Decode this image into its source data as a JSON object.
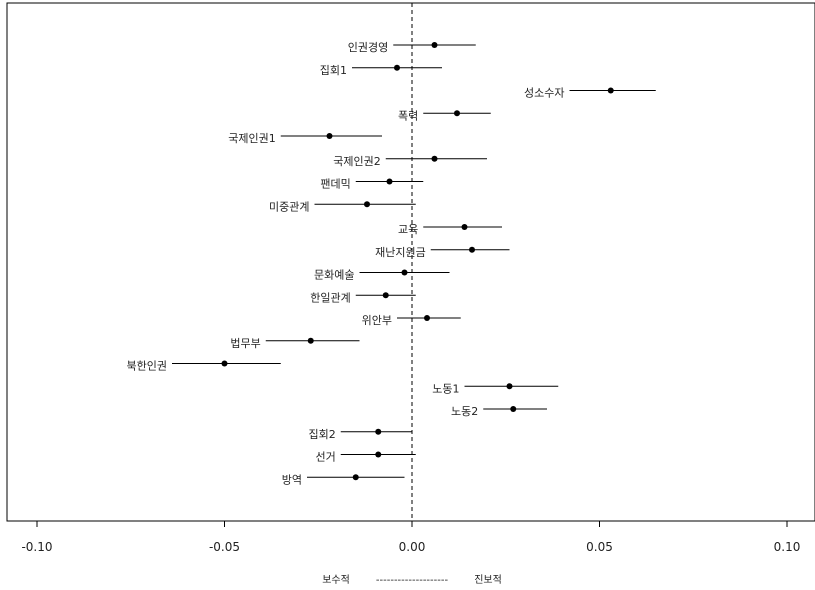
{
  "chart_data": {
    "type": "scatter",
    "subtype": "coefficient-plot-with-intervals",
    "xlim": [
      -0.1,
      0.1
    ],
    "xticks": [
      "-0.10",
      "-0.05",
      "0.00",
      "0.05",
      "0.10"
    ],
    "xtick_values": [
      -0.1,
      -0.05,
      0.0,
      0.05,
      0.1
    ],
    "reference_line": 0.0,
    "grid": false,
    "series": [
      {
        "label": "인권경영",
        "estimate": 0.006,
        "lower": -0.005,
        "upper": 0.017
      },
      {
        "label": "집회1",
        "estimate": -0.004,
        "lower": -0.016,
        "upper": 0.008
      },
      {
        "label": "성소수자",
        "estimate": 0.053,
        "lower": 0.042,
        "upper": 0.065
      },
      {
        "label": "폭력",
        "estimate": 0.012,
        "lower": 0.003,
        "upper": 0.021
      },
      {
        "label": "국제인권1",
        "estimate": -0.022,
        "lower": -0.035,
        "upper": -0.008
      },
      {
        "label": "국제인권2",
        "estimate": 0.006,
        "lower": -0.007,
        "upper": 0.02
      },
      {
        "label": "팬데믹",
        "estimate": -0.006,
        "lower": -0.015,
        "upper": 0.003
      },
      {
        "label": "미중관계",
        "estimate": -0.012,
        "lower": -0.026,
        "upper": 0.001
      },
      {
        "label": "교육",
        "estimate": 0.014,
        "lower": 0.003,
        "upper": 0.024
      },
      {
        "label": "재난지원금",
        "estimate": 0.016,
        "lower": 0.005,
        "upper": 0.026
      },
      {
        "label": "문화예술",
        "estimate": -0.002,
        "lower": -0.014,
        "upper": 0.01
      },
      {
        "label": "한일관계",
        "estimate": -0.007,
        "lower": -0.015,
        "upper": 0.001
      },
      {
        "label": "위안부",
        "estimate": 0.004,
        "lower": -0.004,
        "upper": 0.013
      },
      {
        "label": "법무부",
        "estimate": -0.027,
        "lower": -0.039,
        "upper": -0.014
      },
      {
        "label": "북한인권",
        "estimate": -0.05,
        "lower": -0.064,
        "upper": -0.035
      },
      {
        "label": "노동1",
        "estimate": 0.026,
        "lower": 0.014,
        "upper": 0.039
      },
      {
        "label": "노동2",
        "estimate": 0.027,
        "lower": 0.019,
        "upper": 0.036
      },
      {
        "label": "집회2",
        "estimate": -0.009,
        "lower": -0.019,
        "upper": 0.0
      },
      {
        "label": "선거",
        "estimate": -0.009,
        "lower": -0.019,
        "upper": 0.001
      },
      {
        "label": "방역",
        "estimate": -0.015,
        "lower": -0.028,
        "upper": -0.002
      }
    ],
    "label_side": [
      "left",
      "left",
      "left",
      "left",
      "left",
      "left",
      "left",
      "left",
      "left",
      "left",
      "left",
      "left",
      "left",
      "left",
      "left",
      "left",
      "left",
      "left",
      "left",
      "left"
    ],
    "footer": {
      "left": "보수적",
      "middle": "--------------------",
      "right": "진보적"
    }
  }
}
